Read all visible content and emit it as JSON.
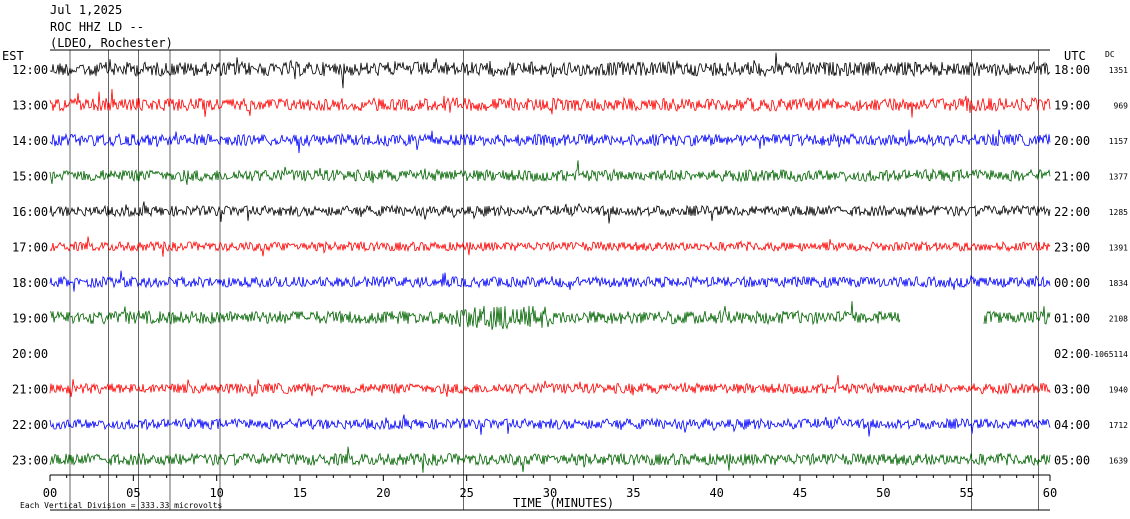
{
  "header": {
    "line1": "Jul 1,2025",
    "line2": "ROC HHZ LD --",
    "line3": "(LDEO, Rochester)"
  },
  "labels": {
    "left_zone": "EST",
    "right_zone": "UTC",
    "dc": "DC",
    "xlabel": "TIME (MINUTES)",
    "footnote": "Each Vertical Division = 333.33 microvolts"
  },
  "chart_data": {
    "type": "line",
    "title": "Jul 1,2025 ROC HHZ LD -- (LDEO, Rochester)",
    "xlabel": "TIME (MINUTES)",
    "xlim": [
      0,
      60
    ],
    "x_ticks": [
      "00",
      "05",
      "10",
      "15",
      "20",
      "25",
      "30",
      "35",
      "40",
      "45",
      "50",
      "55",
      "60"
    ],
    "vertical_division": "333.33 microvolts",
    "colors": [
      "#000000",
      "#ff0000",
      "#0000ff",
      "#006400"
    ],
    "rows": [
      {
        "est": "12:00",
        "utc": "18:00",
        "dc": "1351",
        "color": "#000000",
        "amp": 0.55
      },
      {
        "est": "13:00",
        "utc": "19:00",
        "dc": "969",
        "color": "#ff0000",
        "amp": 0.5
      },
      {
        "est": "14:00",
        "utc": "20:00",
        "dc": "1157",
        "color": "#0000ff",
        "amp": 0.45
      },
      {
        "est": "15:00",
        "utc": "21:00",
        "dc": "1377",
        "color": "#006400",
        "amp": 0.45
      },
      {
        "est": "16:00",
        "utc": "22:00",
        "dc": "1285",
        "color": "#000000",
        "amp": 0.4
      },
      {
        "est": "17:00",
        "utc": "23:00",
        "dc": "1391",
        "color": "#ff0000",
        "amp": 0.35
      },
      {
        "est": "18:00",
        "utc": "00:00",
        "dc": "1834",
        "color": "#0000ff",
        "amp": 0.4
      },
      {
        "est": "19:00",
        "utc": "01:00",
        "dc": "2108",
        "color": "#006400",
        "amp": 0.5
      },
      {
        "est": "20:00",
        "utc": "02:00",
        "dc": "-1065114",
        "color": "#000000",
        "amp": 0
      },
      {
        "est": "21:00",
        "utc": "03:00",
        "dc": "1940",
        "color": "#ff0000",
        "amp": 0.4
      },
      {
        "est": "22:00",
        "utc": "04:00",
        "dc": "1712",
        "color": "#0000ff",
        "amp": 0.4
      },
      {
        "est": "23:00",
        "utc": "05:00",
        "dc": "1639",
        "color": "#006400",
        "amp": 0.45
      }
    ]
  }
}
